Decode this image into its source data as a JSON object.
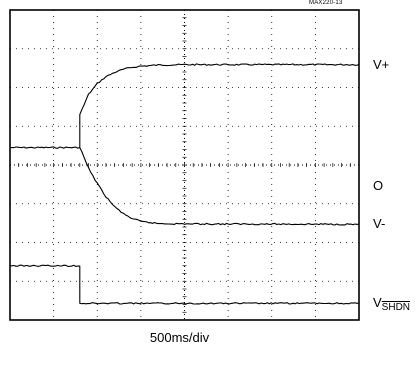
{
  "figure_id": "MAX220-13",
  "time_division": "500ms/div",
  "chart_data": {
    "type": "line",
    "title": "",
    "xlabel": "500ms/div",
    "ylabel": "",
    "grid": true,
    "x_divisions": 8,
    "y_divisions": 8,
    "xlim": [
      0,
      8
    ],
    "ylim": [
      0,
      8
    ],
    "event_time_div": 1.6,
    "channel_labels": [
      {
        "id": "vplus",
        "text": "V+",
        "level_div": 6.58
      },
      {
        "id": "zero",
        "text": "O",
        "level_div": 3.46
      },
      {
        "id": "vminus",
        "text": "V-",
        "level_div": 2.47
      },
      {
        "id": "vshdn",
        "text": "V",
        "subscript": "SHDN",
        "level_div": 0.43
      }
    ],
    "series": [
      {
        "id": "supply",
        "points_div": [
          [
            0,
            4.45
          ],
          [
            1.6,
            4.45
          ],
          [
            1.6,
            5.3
          ],
          [
            1.8,
            5.82
          ],
          [
            2.0,
            6.1
          ],
          [
            2.2,
            6.28
          ],
          [
            2.4,
            6.39
          ],
          [
            2.6,
            6.47
          ],
          [
            2.8,
            6.52
          ],
          [
            3.0,
            6.55
          ],
          [
            3.4,
            6.58
          ],
          [
            4.0,
            6.59
          ],
          [
            8.0,
            6.59
          ]
        ]
      },
      {
        "id": "negative",
        "points_div": [
          [
            1.6,
            4.45
          ],
          [
            1.8,
            3.92
          ],
          [
            2.0,
            3.52
          ],
          [
            2.2,
            3.18
          ],
          [
            2.4,
            2.92
          ],
          [
            2.6,
            2.74
          ],
          [
            2.8,
            2.62
          ],
          [
            3.0,
            2.54
          ],
          [
            3.4,
            2.49
          ],
          [
            4.0,
            2.48
          ],
          [
            8.0,
            2.47
          ]
        ]
      },
      {
        "id": "vshdn",
        "points_div": [
          [
            0,
            1.4
          ],
          [
            1.6,
            1.4
          ],
          [
            1.6,
            0.43
          ],
          [
            8.0,
            0.43
          ]
        ]
      }
    ]
  }
}
